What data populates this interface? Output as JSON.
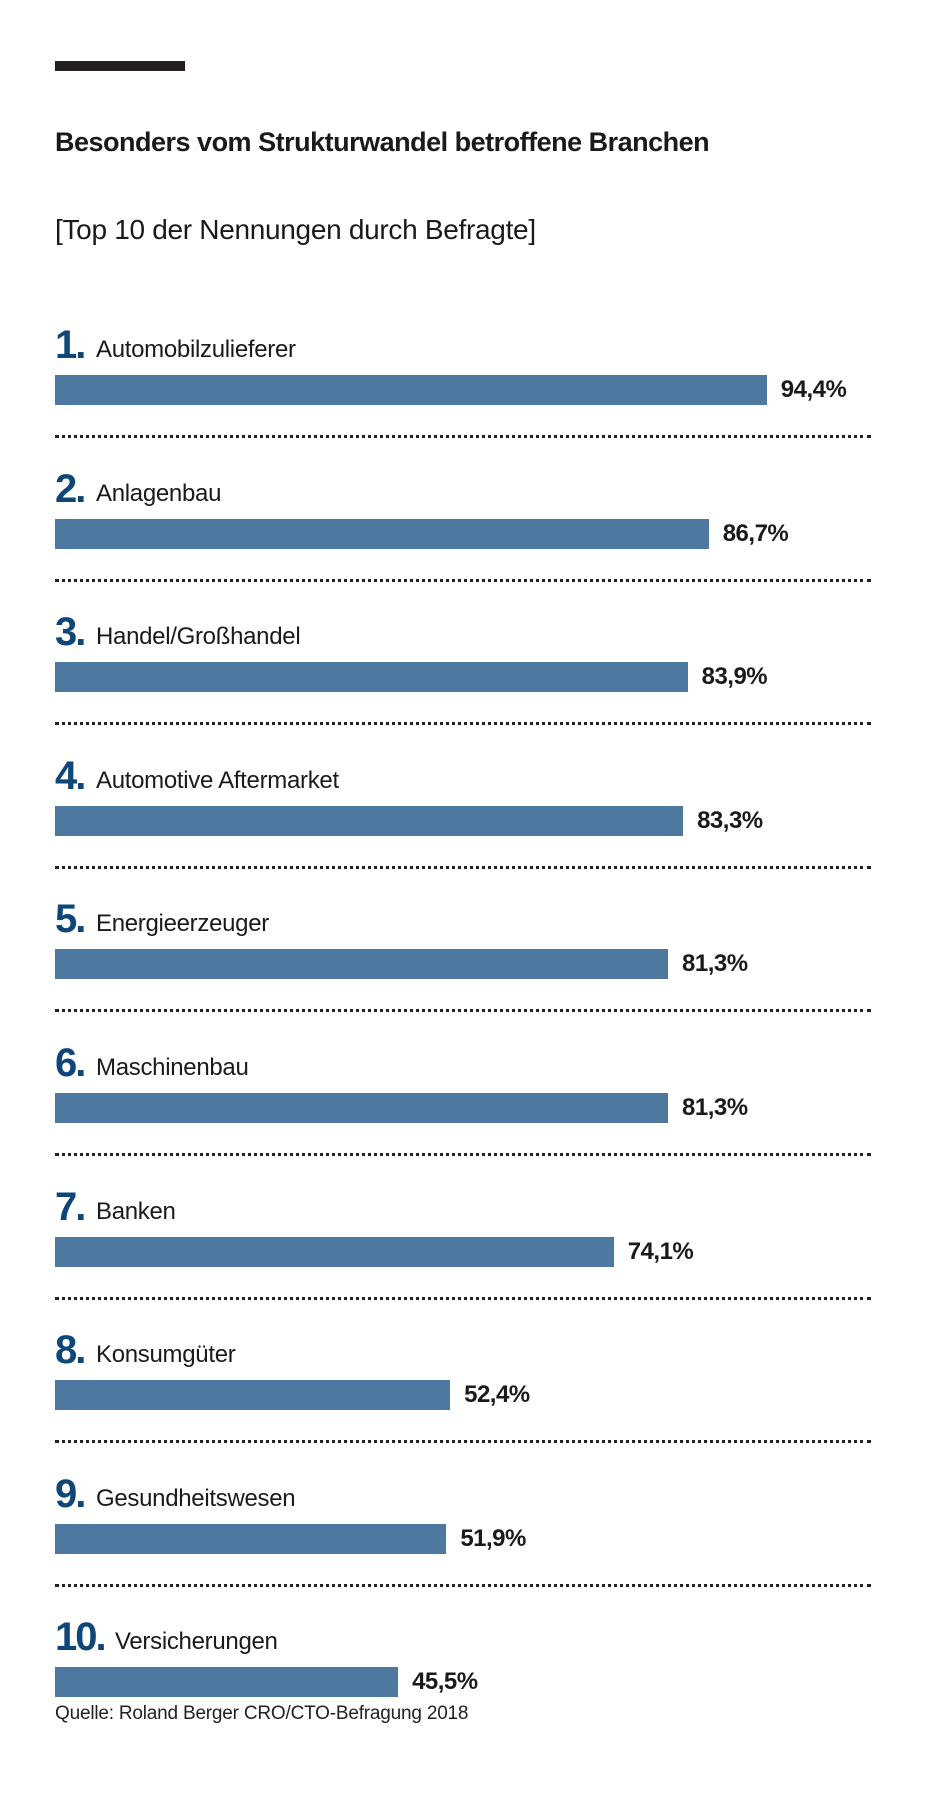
{
  "title": "Besonders vom Strukturwandel betroffene Branchen",
  "subtitle": "[Top 10 der Nennungen durch Befragte]",
  "source": "Quelle: Roland Berger CRO/CTO-Befragung 2018",
  "colors": {
    "bar": "#4d789f",
    "rank": "#0e4677",
    "text": "#1a1a1a"
  },
  "chart_data": {
    "type": "bar",
    "orientation": "horizontal",
    "title": "Besonders vom Strukturwandel betroffene Branchen",
    "subtitle": "[Top 10 der Nennungen durch Befragte]",
    "xlim": [
      0,
      100
    ],
    "grid": false,
    "ranks": [
      "1.",
      "2.",
      "3.",
      "4.",
      "5.",
      "6.",
      "7.",
      "8.",
      "9.",
      "10."
    ],
    "categories": [
      "Automobilzulieferer",
      "Anlagenbau",
      "Handel/Großhandel",
      "Automotive Aftermarket",
      "Energieerzeuger",
      "Maschinenbau",
      "Banken",
      "Konsumgüter",
      "Gesundheitswesen",
      "Versicherungen"
    ],
    "values": [
      94.4,
      86.7,
      83.9,
      83.3,
      81.3,
      81.3,
      74.1,
      52.4,
      51.9,
      45.5
    ],
    "value_labels": [
      "94,4%",
      "86,7%",
      "83,9%",
      "83,3%",
      "81,3%",
      "81,3%",
      "74,1%",
      "52,4%",
      "51,9%",
      "45,5%"
    ]
  }
}
